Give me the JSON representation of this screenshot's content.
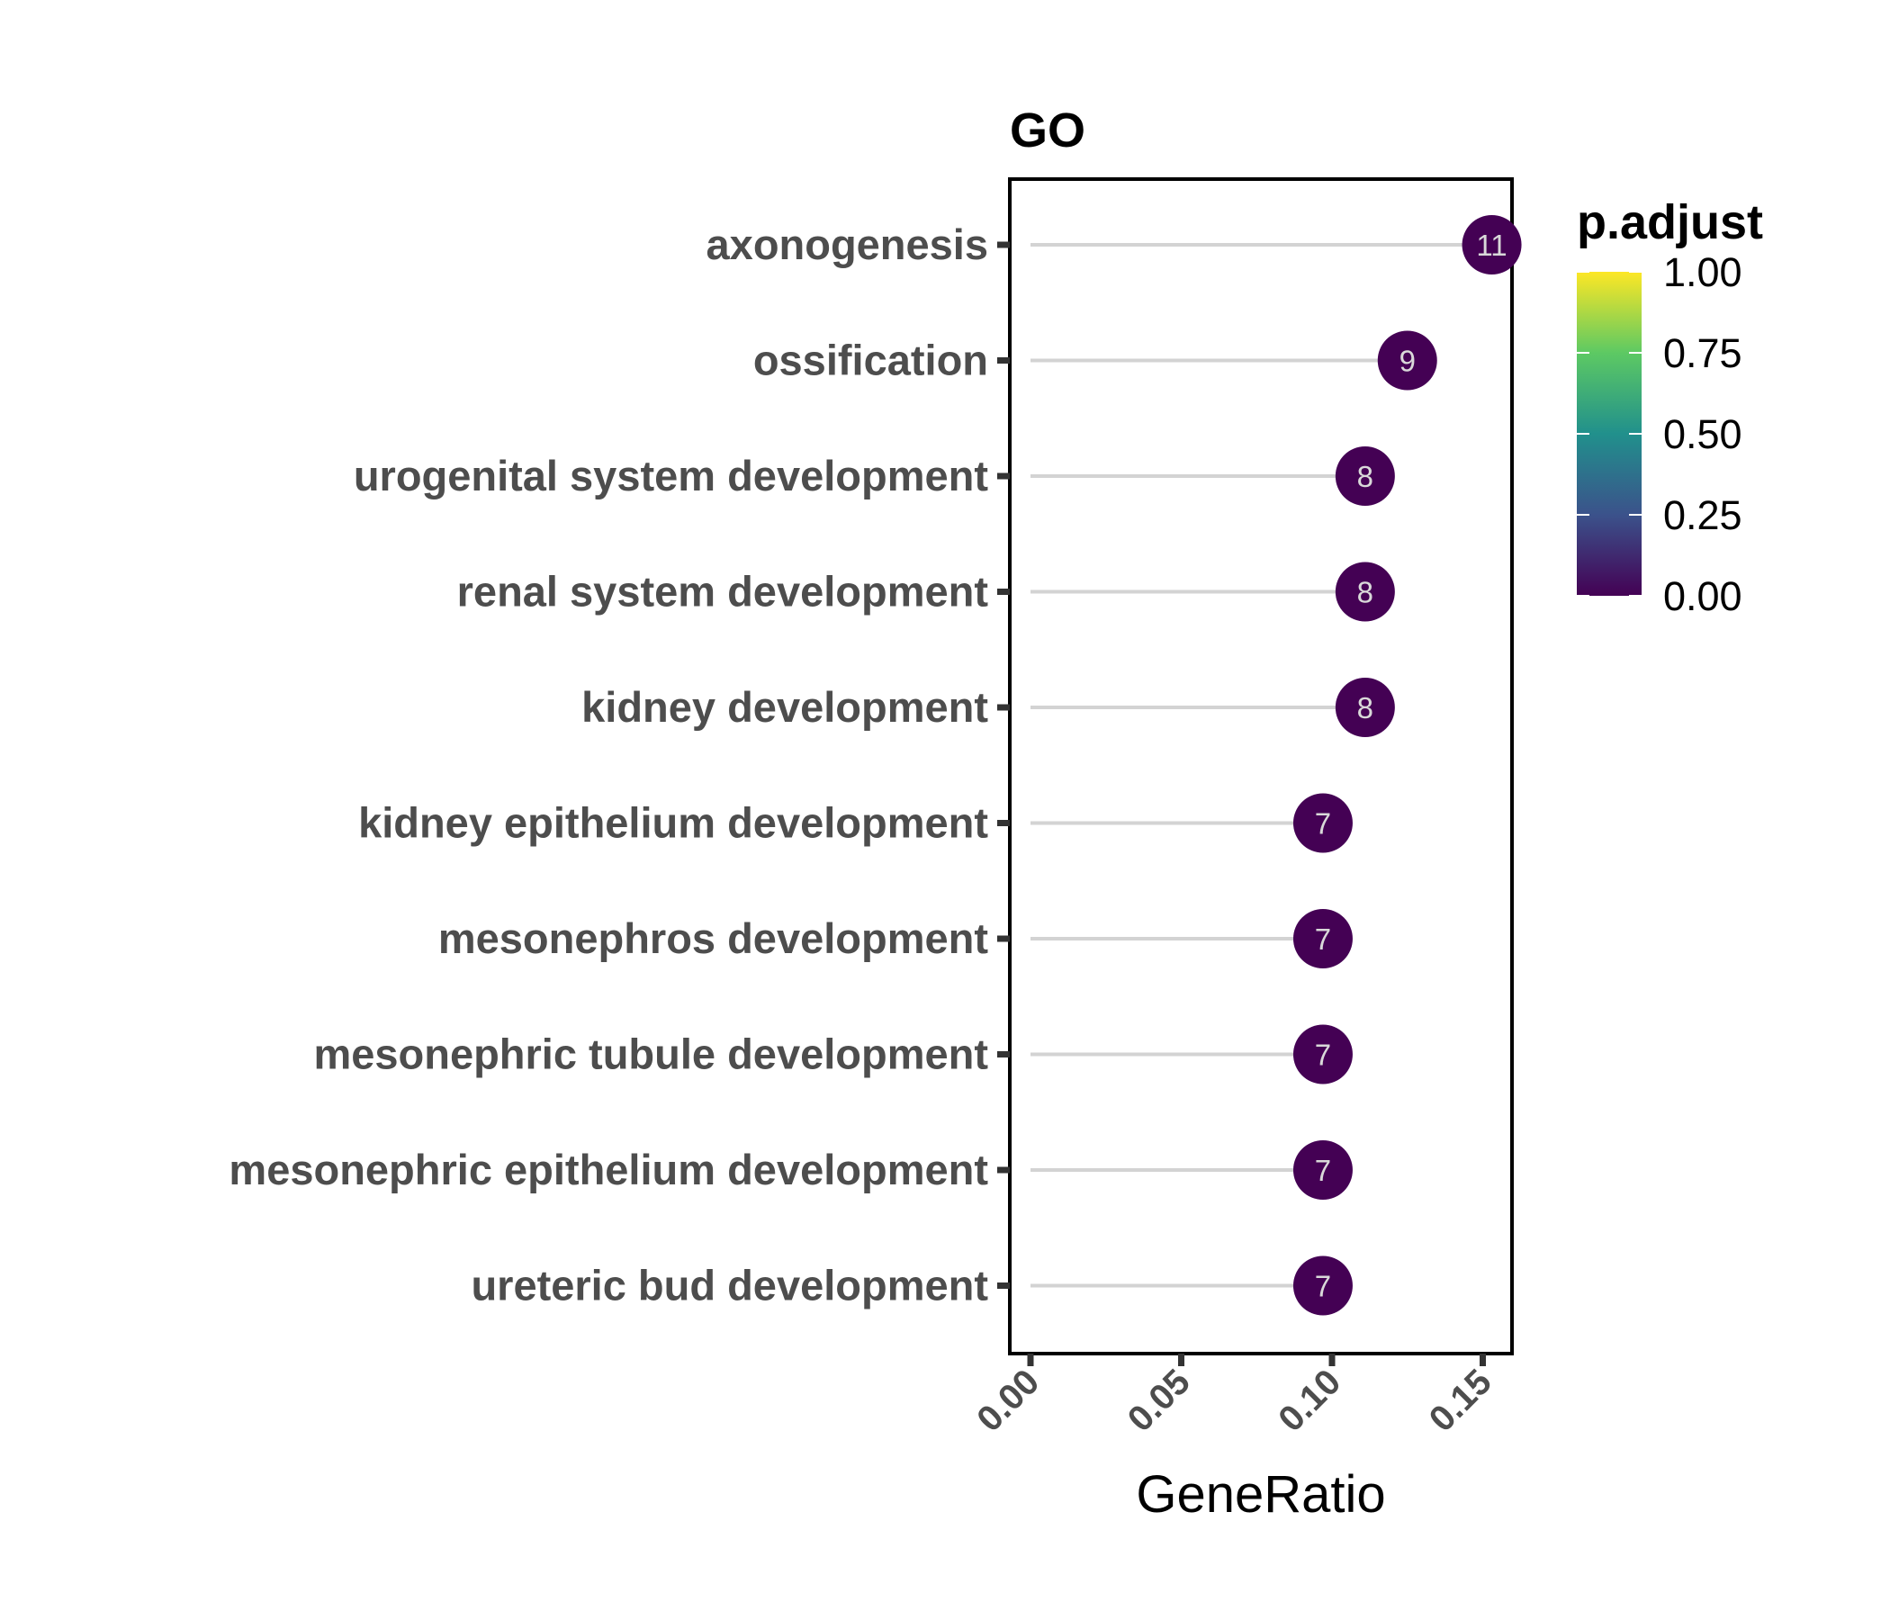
{
  "chart_data": {
    "type": "lollipop",
    "title": "GO",
    "xlabel": "GeneRatio",
    "ylabel": "",
    "xlim": [
      0,
      0.16
    ],
    "x_ticks": [
      "0.00",
      "0.05",
      "0.10",
      "0.15"
    ],
    "x_tick_values": [
      0,
      0.05,
      0.1,
      0.15
    ],
    "categories": [
      "axonogenesis",
      "ossification",
      "urogenital system development",
      "renal system development",
      "kidney development",
      "kidney epithelium development",
      "mesonephros development",
      "mesonephric tubule development",
      "mesonephric epithelium development",
      "ureteric bud development"
    ],
    "gene_ratio": [
      0.153,
      0.125,
      0.111,
      0.111,
      0.111,
      0.097,
      0.097,
      0.097,
      0.097,
      0.097
    ],
    "counts": [
      "11",
      "9",
      "8",
      "8",
      "8",
      "7",
      "7",
      "7",
      "7",
      "7"
    ],
    "p_adjust": [
      0.0,
      0.0,
      0.0,
      0.0,
      0.0,
      0.0,
      0.0,
      0.0,
      0.0,
      0.0
    ],
    "color_legend": {
      "title": "p.adjust",
      "range": [
        0,
        1
      ],
      "ticks": [
        "0.00",
        "0.25",
        "0.50",
        "0.75",
        "1.00"
      ],
      "tick_values": [
        0,
        0.25,
        0.5,
        0.75,
        1.0
      ],
      "colors": [
        "#440154",
        "#3b528b",
        "#21908c",
        "#5dc963",
        "#fde725"
      ]
    },
    "grid": false,
    "legend_position": "right"
  }
}
